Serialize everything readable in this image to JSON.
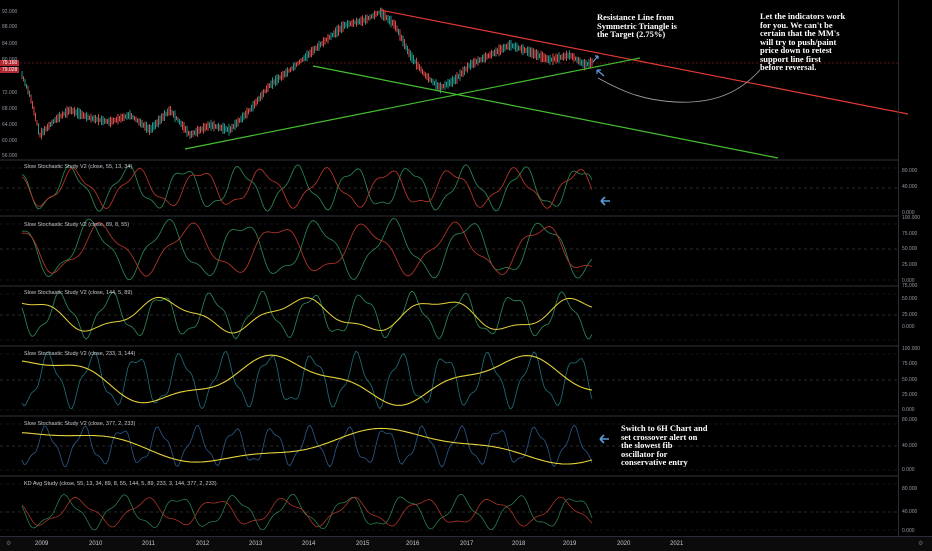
{
  "main_pane": {
    "price_ticks": [
      "92.000",
      "88.000",
      "84.000",
      "80.000",
      "72.000",
      "68.000",
      "64.000",
      "60.000",
      "56.000"
    ],
    "badge_high": "79.160",
    "badge_low": "79.028",
    "badge_high_color": "#b22833",
    "badge_low_color": "#b22833"
  },
  "annotations": {
    "resistance_note": [
      "Resistance Line from",
      "Symmetric Triangle is",
      "the Target (2.75%)"
    ],
    "indicators_note": [
      "Let the indicators work",
      "for you. We can't be",
      "certain that the MM's",
      "will try to push/paint",
      "price down to retest",
      "support line first",
      "before reversal."
    ],
    "switch_note": [
      "Switch to 6H Chart and",
      "set crossover alert on",
      "the slowest fib",
      "oscillator for",
      "conservative entry"
    ]
  },
  "panes": [
    {
      "label": "Slow Stochastic Study V2 (close, 55, 13, 34)",
      "ticks": [
        "80.000",
        "40.000",
        "0.000"
      ]
    },
    {
      "label": "Slow Stochastic Study V2 (close, 89, 8, 55)",
      "ticks": [
        "100.000",
        "75.000",
        "50.000",
        "25.000",
        "0.000"
      ]
    },
    {
      "label": "Slow Stochastic Study V2 (close, 144, 5, 89)",
      "ticks": [
        "75.000",
        "50.000",
        "25.000",
        "0.000"
      ]
    },
    {
      "label": "Slow Stochastic Study V2 (close, 233, 3, 144)",
      "ticks": [
        "100.000",
        "75.000",
        "50.000",
        "25.000",
        "0.000"
      ]
    },
    {
      "label": "Slow Stochastic Study V2 (close, 377, 2, 233)",
      "ticks": [
        "80.000",
        "40.000",
        "0.000"
      ]
    },
    {
      "label": "KD Avg Study (close, 55, 13, 34, 89, 8, 55, 144, 5, 89, 233, 3, 144, 377, 2, 233)",
      "ticks": [
        "80.000",
        "40.000",
        "0.000"
      ]
    }
  ],
  "x_axis": [
    "2009",
    "2010",
    "2011",
    "2012",
    "2013",
    "2014",
    "2015",
    "2016",
    "2017",
    "2018",
    "2019",
    "2020",
    "2021"
  ],
  "colors": {
    "resistance": "#e53935",
    "support": "#43c02e",
    "projection": "#9e9e9e",
    "arrow": "#5b9bd5",
    "stoch_fast": "#2e8b57",
    "stoch_slow": "#c0392b",
    "stoch_yellow": "#e6d23a",
    "stoch_teal": "#1f6f7a"
  },
  "icons": {
    "arrow": "arrow-left-icon",
    "settings": "gear-icon"
  }
}
